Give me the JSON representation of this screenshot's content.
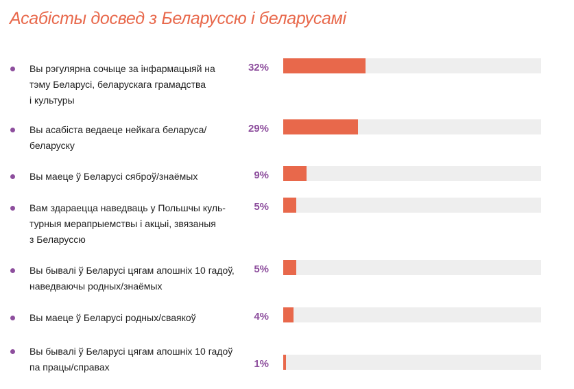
{
  "title": "Асабісты досвед з Беларуссю і беларусамі",
  "colors": {
    "title": "#e8684b",
    "bar": "#e8684b",
    "track": "#eeeeee",
    "bullet": "#8d4e9d",
    "percent": "#8d4e9d"
  },
  "chart_data": {
    "type": "bar",
    "orientation": "horizontal",
    "title": "Асабісты досвед з Беларуссю і беларусамі",
    "categories": [
      "Вы рэгулярна сочыце за інфармацыяй на тэму Беларусі, беларускага грамадства і культуры",
      "Вы асабіста ведаеце нейкага беларуса/ беларуску",
      "Вы маеце ў Беларусі сяброў/знаёмых",
      "Вам здараецца наведваць у Польшчы культурныя мерапрыемствы і акцыі, звязаныя з Беларуссю",
      "Вы бывалі ў Беларусі цягам апошніх 10 гадоў, наведваючы родных/знаёмых",
      "Вы маеце ў Беларусі родных/сваякоў",
      "Вы бывалі ў Беларусі цягам апошніх 10 гадоў па працы/справах"
    ],
    "values": [
      32,
      29,
      9,
      5,
      5,
      4,
      1
    ],
    "value_labels": [
      "32%",
      "29%",
      "9%",
      "5%",
      "5%",
      "4%",
      "1%"
    ],
    "xlim": [
      0,
      100
    ],
    "unit": "%"
  },
  "rows": [
    {
      "lines": [
        "Вы рэгулярна сочыце за інфармацыяй на",
        "тэму Беларусі, беларускага грамадства",
        "і культуры"
      ],
      "value": 32,
      "label": "32%"
    },
    {
      "lines": [
        "Вы асабіста ведаеце нейкага беларуса/",
        "беларуску"
      ],
      "value": 29,
      "label": "29%"
    },
    {
      "lines": [
        "Вы маеце ў Беларусі сяброў/знаёмых"
      ],
      "value": 9,
      "label": "9%"
    },
    {
      "lines": [
        "Вам здараецца наведваць у Польшчы куль-",
        "турныя мерапрыемствы і акцыі, звязаныя",
        "з Беларуссю"
      ],
      "value": 5,
      "label": "5%"
    },
    {
      "lines": [
        "Вы бывалі ў Беларусі цягам апошніх 10 гадоў,",
        "наведваючы родных/знаёмых"
      ],
      "value": 5,
      "label": "5%"
    },
    {
      "lines": [
        "Вы маеце ў Беларусі родных/сваякоў"
      ],
      "value": 4,
      "label": "4%"
    },
    {
      "lines": [
        "Вы бывалі ў Беларусі цягам апошніх 10 гадоў",
        "па працы/справах"
      ],
      "value": 1,
      "label": "1%"
    }
  ]
}
